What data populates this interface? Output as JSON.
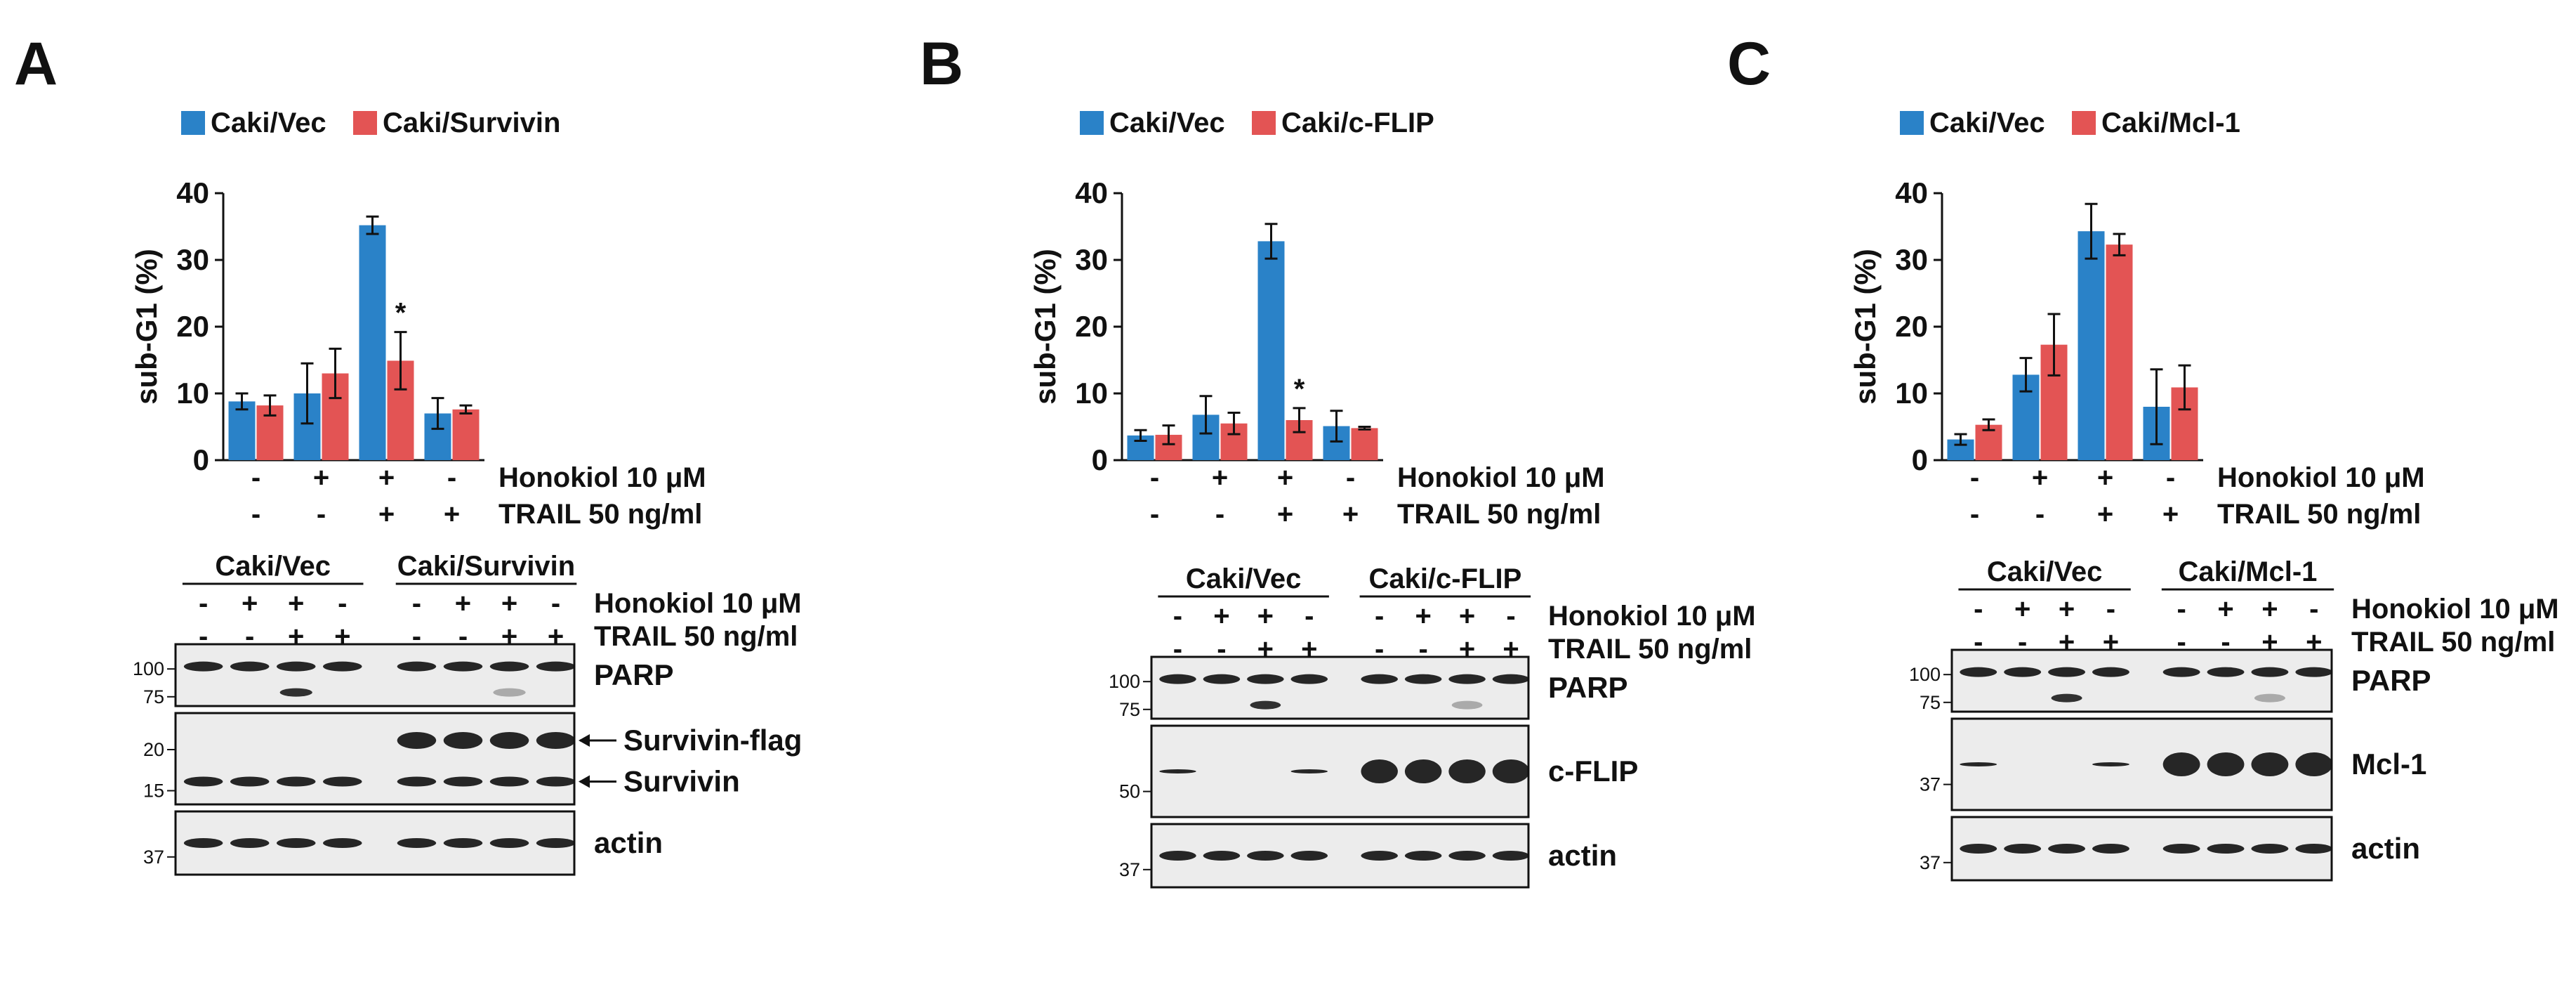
{
  "colors": {
    "vec": "#2a82c8",
    "other": "#e35454",
    "blot_bg": "#ececec",
    "band": "#111111"
  },
  "panels": [
    {
      "letter": "A",
      "legend": [
        "Caki/Vec",
        "Caki/Survivin"
      ],
      "ylabel": "sub-G1 (%)",
      "yticks": [
        "0",
        "10",
        "20",
        "30",
        "40"
      ],
      "ylim": [
        0,
        40
      ],
      "conditions": {
        "honokiol": {
          "label": "Honokiol 10 μM",
          "signs": [
            "-",
            "+",
            "+",
            "-"
          ]
        },
        "trail": {
          "label": "TRAIL 50 ng/ml",
          "signs": [
            "-",
            "-",
            "+",
            "+"
          ]
        }
      },
      "chart_data": {
        "type": "bar",
        "categories": [
          "1",
          "2",
          "3",
          "4"
        ],
        "series": [
          {
            "name": "Caki/Vec",
            "values": [
              8.8,
              10.0,
              35.2,
              7.0
            ],
            "errors": [
              1.2,
              4.5,
              1.3,
              2.3
            ]
          },
          {
            "name": "Caki/Survivin",
            "values": [
              8.2,
              13.0,
              14.9,
              7.6
            ],
            "errors": [
              1.5,
              3.7,
              4.3,
              0.6
            ]
          }
        ],
        "ylabel": "sub-G1 (%)",
        "ylim": [
          0,
          40
        ],
        "annotations": [
          {
            "category_index": 2,
            "series_index": 1,
            "text": "*"
          }
        ]
      },
      "blot": {
        "groups": [
          "Caki/Vec",
          "Caki/Survivin"
        ],
        "honokiol": {
          "label": "Honokiol 10 μM",
          "signs": [
            "-",
            "+",
            "+",
            "-",
            "-",
            "+",
            "+",
            "-"
          ]
        },
        "trail": {
          "label": "TRAIL 50 ng/ml",
          "signs": [
            "-",
            "-",
            "+",
            "+",
            "-",
            "-",
            "+",
            "+"
          ]
        },
        "rows": [
          {
            "label": "PARP",
            "mw": [
              "100",
              "75"
            ],
            "mw_units": [
              100,
              75
            ]
          },
          {
            "label": "",
            "mw": [
              "20",
              "15"
            ],
            "mw_units": [
              20,
              15
            ],
            "arrows": [
              "Survivin-flag",
              "Survivin"
            ]
          },
          {
            "label": "actin",
            "mw": [
              "37"
            ],
            "mw_units": [
              37
            ]
          }
        ]
      }
    },
    {
      "letter": "B",
      "legend": [
        "Caki/Vec",
        "Caki/c-FLIP"
      ],
      "ylabel": "sub-G1 (%)",
      "yticks": [
        "0",
        "10",
        "20",
        "30",
        "40"
      ],
      "ylim": [
        0,
        40
      ],
      "conditions": {
        "honokiol": {
          "label": "Honokiol 10 μM",
          "signs": [
            "-",
            "+",
            "+",
            "-"
          ]
        },
        "trail": {
          "label": "TRAIL 50 ng/ml",
          "signs": [
            "-",
            "-",
            "+",
            "+"
          ]
        }
      },
      "chart_data": {
        "type": "bar",
        "categories": [
          "1",
          "2",
          "3",
          "4"
        ],
        "series": [
          {
            "name": "Caki/Vec",
            "values": [
              3.7,
              6.8,
              32.8,
              5.1
            ],
            "errors": [
              0.8,
              2.8,
              2.6,
              2.3
            ]
          },
          {
            "name": "Caki/c-FLIP",
            "values": [
              3.8,
              5.5,
              6.0,
              4.8
            ],
            "errors": [
              1.4,
              1.6,
              1.8,
              0.2
            ]
          }
        ],
        "ylabel": "sub-G1 (%)",
        "ylim": [
          0,
          40
        ],
        "annotations": [
          {
            "category_index": 2,
            "series_index": 1,
            "text": "*"
          }
        ]
      },
      "blot": {
        "groups": [
          "Caki/Vec",
          "Caki/c-FLIP"
        ],
        "honokiol": {
          "label": "Honokiol 10 μM",
          "signs": [
            "-",
            "+",
            "+",
            "-",
            "-",
            "+",
            "+",
            "-"
          ]
        },
        "trail": {
          "label": "TRAIL 50 ng/ml",
          "signs": [
            "-",
            "-",
            "+",
            "+",
            "-",
            "-",
            "+",
            "+"
          ]
        },
        "rows": [
          {
            "label": "PARP",
            "mw": [
              "100",
              "75"
            ],
            "mw_units": [
              100,
              75
            ]
          },
          {
            "label": "c-FLIP",
            "mw": [
              "50"
            ],
            "mw_units": [
              50
            ]
          },
          {
            "label": "actin",
            "mw": [
              "37"
            ],
            "mw_units": [
              37
            ]
          }
        ]
      }
    },
    {
      "letter": "C",
      "legend": [
        "Caki/Vec",
        "Caki/Mcl-1"
      ],
      "ylabel": "sub-G1 (%)",
      "yticks": [
        "0",
        "10",
        "20",
        "30",
        "40"
      ],
      "ylim": [
        0,
        40
      ],
      "conditions": {
        "honokiol": {
          "label": "Honokiol 10 μM",
          "signs": [
            "-",
            "+",
            "+",
            "-"
          ]
        },
        "trail": {
          "label": "TRAIL 50 ng/ml",
          "signs": [
            "-",
            "-",
            "+",
            "+"
          ]
        }
      },
      "chart_data": {
        "type": "bar",
        "categories": [
          "1",
          "2",
          "3",
          "4"
        ],
        "series": [
          {
            "name": "Caki/Vec",
            "values": [
              3.1,
              12.8,
              34.3,
              8.0
            ],
            "errors": [
              0.8,
              2.5,
              4.1,
              5.6
            ]
          },
          {
            "name": "Caki/Mcl-1",
            "values": [
              5.3,
              17.3,
              32.3,
              10.9
            ],
            "errors": [
              0.8,
              4.6,
              1.6,
              3.3
            ]
          }
        ],
        "ylabel": "sub-G1 (%)",
        "ylim": [
          0,
          40
        ],
        "annotations": []
      },
      "blot": {
        "groups": [
          "Caki/Vec",
          "Caki/Mcl-1"
        ],
        "honokiol": {
          "label": "Honokiol 10 μM",
          "signs": [
            "-",
            "+",
            "+",
            "-",
            "-",
            "+",
            "+",
            "-"
          ]
        },
        "trail": {
          "label": "TRAIL 50 ng/ml",
          "signs": [
            "-",
            "-",
            "+",
            "+",
            "-",
            "-",
            "+",
            "+"
          ]
        },
        "rows": [
          {
            "label": "PARP",
            "mw": [
              "100",
              "75"
            ],
            "mw_units": [
              100,
              75
            ]
          },
          {
            "label": "Mcl-1",
            "mw": [
              "37"
            ],
            "mw_units": [
              37
            ]
          },
          {
            "label": "actin",
            "mw": [
              "37"
            ],
            "mw_units": [
              37
            ]
          }
        ]
      }
    }
  ]
}
